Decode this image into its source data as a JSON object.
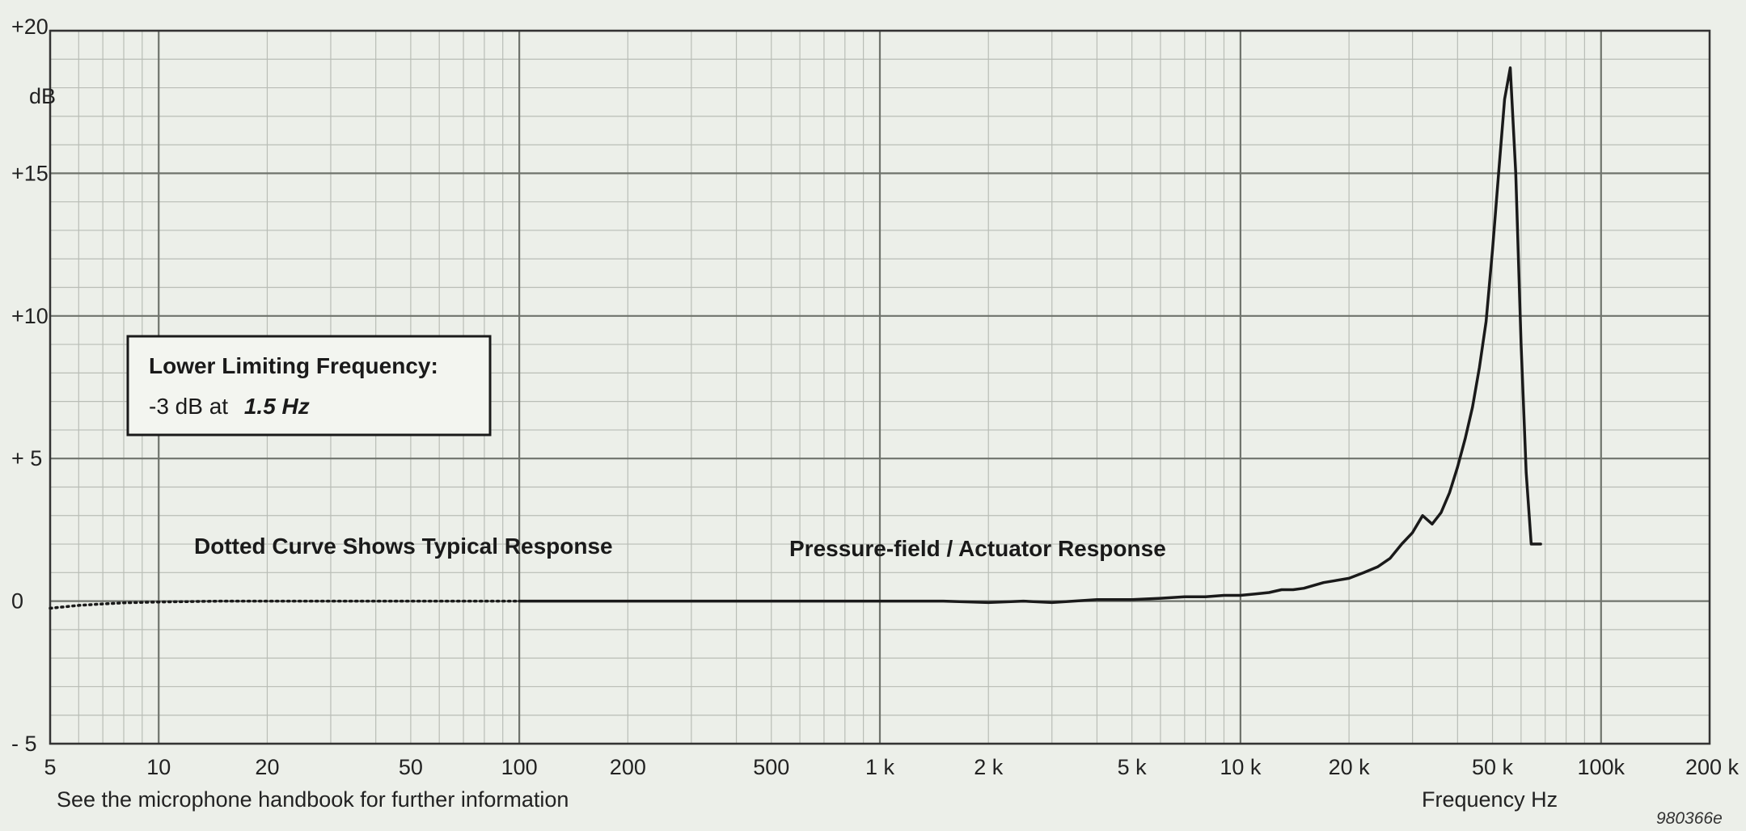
{
  "chart_data": {
    "type": "line",
    "x_scale": "log",
    "xlim": [
      5,
      200000
    ],
    "ylim": [
      -5,
      20
    ],
    "grid": true,
    "x_ticks": [
      {
        "value": 5,
        "label": "5"
      },
      {
        "value": 10,
        "label": "10"
      },
      {
        "value": 20,
        "label": "20"
      },
      {
        "value": 50,
        "label": "50"
      },
      {
        "value": 100,
        "label": "100"
      },
      {
        "value": 200,
        "label": "200"
      },
      {
        "value": 500,
        "label": "500"
      },
      {
        "value": 1000,
        "label": "1 k"
      },
      {
        "value": 2000,
        "label": "2 k"
      },
      {
        "value": 5000,
        "label": "5 k"
      },
      {
        "value": 10000,
        "label": "10 k"
      },
      {
        "value": 20000,
        "label": "20 k"
      },
      {
        "value": 50000,
        "label": "50 k"
      },
      {
        "value": 100000,
        "label": "100k"
      },
      {
        "value": 200000,
        "label": "200 k"
      }
    ],
    "y_ticks": [
      {
        "value": 20,
        "label": "+20"
      },
      {
        "value": 15,
        "label": "+15"
      },
      {
        "value": 10,
        "label": "+10"
      },
      {
        "value": 5,
        "label": "+ 5"
      },
      {
        "value": 0,
        "label": "0"
      },
      {
        "value": -5,
        "label": "- 5"
      }
    ],
    "ylabel": "dB",
    "xlabel": "Frequency Hz",
    "series": [
      {
        "style": "dotted",
        "x": [
          5,
          6,
          7,
          8,
          10,
          15,
          20,
          30,
          50,
          70,
          100
        ],
        "y": [
          -0.25,
          -0.15,
          -0.1,
          -0.06,
          -0.03,
          0,
          0,
          0,
          0,
          0,
          0
        ]
      },
      {
        "style": "solid",
        "x": [
          100,
          200,
          500,
          1000,
          1500,
          2000,
          2500,
          3000,
          4000,
          5000,
          6000,
          7000,
          8000,
          9000,
          10000,
          11000,
          12000,
          13000,
          14000,
          15000,
          17000,
          20000,
          22000,
          24000,
          26000,
          28000,
          30000,
          32000,
          34000,
          36000,
          38000,
          40000,
          42000,
          44000,
          46000,
          48000,
          50000,
          52000,
          54000,
          56000,
          58000,
          60000,
          62000,
          64000,
          66000,
          68000
        ],
        "y": [
          0,
          0,
          0,
          0,
          0,
          -0.05,
          0,
          -0.05,
          0.05,
          0.05,
          0.1,
          0.15,
          0.15,
          0.2,
          0.2,
          0.25,
          0.3,
          0.4,
          0.4,
          0.45,
          0.65,
          0.8,
          1.0,
          1.2,
          1.5,
          2.0,
          2.4,
          3.0,
          2.7,
          3.1,
          3.8,
          4.7,
          5.7,
          6.8,
          8.2,
          9.8,
          12.3,
          15.0,
          17.6,
          18.7,
          15.0,
          9.0,
          4.5,
          2.0,
          2.0,
          2.0
        ]
      }
    ]
  },
  "annotations": {
    "box_title": "Lower Limiting Frequency:",
    "box_value_prefix": "-3 dB at",
    "box_value_emph": "1.5 Hz",
    "dotted_note": "Dotted Curve Shows Typical Response",
    "curve_note": "Pressure-field / Actuator Response",
    "footnote": "See the microphone handbook for further information",
    "figure_code": "980366e"
  }
}
